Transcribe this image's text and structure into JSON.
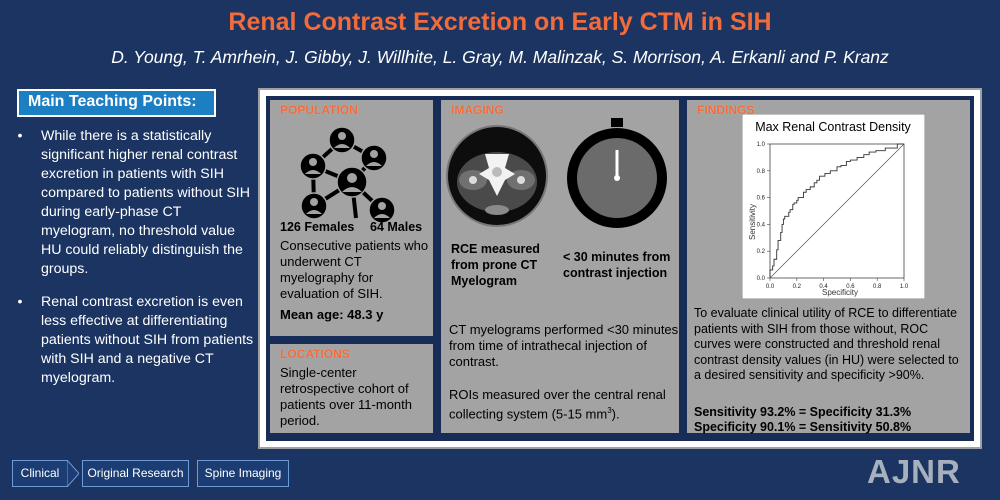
{
  "header": {
    "title": "Renal Contrast Excretion on Early CTM in SIH",
    "authors": "D. Young, T. Amrhein, J. Gibby, J. Willhite, L. Gray, M. Malinzak, S. Morrison, A. Erkanli and P. Kranz"
  },
  "teaching": {
    "heading": "Main Teaching Points:",
    "points": [
      "While there is a statistically significant higher renal contrast excretion in patients with SIH compared to patients without SIH during early-phase CT myelogram, no threshold value HU could reliably distinguish the groups.",
      "Renal contrast excretion is even less effective at differentiating patients without SIH from patients with SIH and a negative CT myelogram."
    ],
    "bullet": "•"
  },
  "population": {
    "heading": "POPULATION",
    "females": "126 Females",
    "males": "64 Males",
    "description": "Consecutive patients who underwent CT myelography for evaluation of SIH.",
    "mean_age": "Mean age: 48.3 y"
  },
  "locations": {
    "heading": "LOCATIONS",
    "text": "Single-center retrospective cohort of patients over 11-month period."
  },
  "imaging": {
    "heading": "IMAGING",
    "rce_caption": "RCE measured from prone CT Myelogram",
    "time_caption": "< 30 minutes from contrast injection",
    "text1": "CT myelograms performed <30 minutes from time of intrathecal injection of contrast.",
    "text2_prefix": "ROIs measured over the central renal collecting system (5-15 mm",
    "text2_sup": "3",
    "text2_suffix": ")."
  },
  "findings": {
    "heading": "FINDINGS",
    "text": "To evaluate clinical utility of RCE to differentiate patients with SIH from those without, ROC curves were constructed and threshold renal contrast density values (in HU) were selected to a desired sensitivity and specificity >90%.",
    "stat1": "Sensitivity 93.2% = Specificity 31.3%",
    "stat2": "Specificity 90.1% = Sensitivity 50.8%"
  },
  "chart_data": {
    "type": "line",
    "title": "Max Renal Contrast Density",
    "xlabel": "Specificity",
    "ylabel": "Sensitivity",
    "xlim": [
      0,
      1
    ],
    "ylim": [
      0,
      1
    ],
    "xticks": [
      "0.0",
      "0.2",
      "0.4",
      "0.6",
      "0.8",
      "1.0"
    ],
    "yticks": [
      "0.0",
      "0.2",
      "0.4",
      "0.6",
      "0.8",
      "1.0"
    ],
    "series": [
      {
        "name": "",
        "x": [
          0,
          0.02,
          0.03,
          0.05,
          0.06,
          0.08,
          0.09,
          0.1,
          0.11,
          0.14,
          0.15,
          0.17,
          0.18,
          0.2,
          0.21,
          0.25,
          0.27,
          0.3,
          0.33,
          0.35,
          0.37,
          0.41,
          0.45,
          0.5,
          0.53,
          0.57,
          0.6,
          0.65,
          0.7,
          0.74,
          0.79,
          0.86,
          0.95,
          1.0
        ],
        "y": [
          0,
          0.06,
          0.09,
          0.14,
          0.21,
          0.28,
          0.34,
          0.4,
          0.44,
          0.46,
          0.49,
          0.51,
          0.55,
          0.56,
          0.58,
          0.6,
          0.64,
          0.66,
          0.68,
          0.71,
          0.73,
          0.76,
          0.78,
          0.8,
          0.83,
          0.84,
          0.87,
          0.88,
          0.9,
          0.92,
          0.94,
          0.95,
          0.97,
          1.0
        ]
      },
      {
        "name": "",
        "x": [
          0,
          1
        ],
        "y": [
          0,
          1
        ]
      }
    ]
  },
  "footer": {
    "clinical": "Clinical",
    "original_research": "Original Research",
    "spine_imaging": "Spine Imaging",
    "logo": "AJNR"
  },
  "colors": {
    "background": "#1b3461",
    "accent": "#f26b3a",
    "teaching_box": "#1d7fc3",
    "panel": "#a3a3a3"
  }
}
